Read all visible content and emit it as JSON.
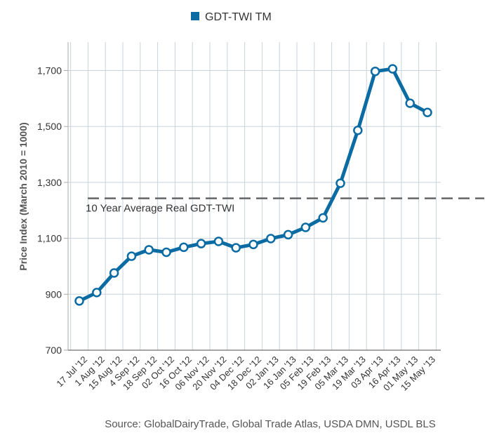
{
  "chart_data": {
    "type": "line",
    "ylabel": "Price Index (March 2010 = 1000)",
    "ylim": [
      700,
      1800
    ],
    "yticks": [
      "700",
      "900",
      "1,100",
      "1,300",
      "1,500",
      "1,700"
    ],
    "ytick_values": [
      700,
      900,
      1100,
      1300,
      1500,
      1700
    ],
    "categories": [
      "17 Jul '12",
      "1 Aug '12",
      "15 Aug '12",
      "4 Sep '12",
      "18 Sep '12",
      "02 Oct '12",
      "16 Oct '12",
      "06 Nov '12",
      "20 Nov '12",
      "04 Dec '12",
      "18 Dec '12",
      "02 Jan '13",
      "16 Jan '13",
      "05 Feb '13",
      "19 Feb '13",
      "05 Mar '13",
      "19 Mar '13",
      "03 Apr '13",
      "16 Apr '13",
      "01 May '13",
      "15 May '13"
    ],
    "legend": "top-center",
    "grid": true,
    "series": [
      {
        "name": "GDT-TWI TM",
        "color": "#0b6ba3",
        "values": [
          876,
          906,
          976,
          1036,
          1059,
          1050,
          1068,
          1081,
          1089,
          1066,
          1078,
          1099,
          1113,
          1139,
          1173,
          1297,
          1486,
          1697,
          1706,
          1583,
          1550
        ]
      }
    ],
    "reference_line": {
      "label": "10 Year Average Real GDT-TWI",
      "value": 1243,
      "color": "#666666"
    },
    "source": "Source: GlobalDairyTrade, Global Trade Atlas, USDA DMN, USDL BLS"
  }
}
